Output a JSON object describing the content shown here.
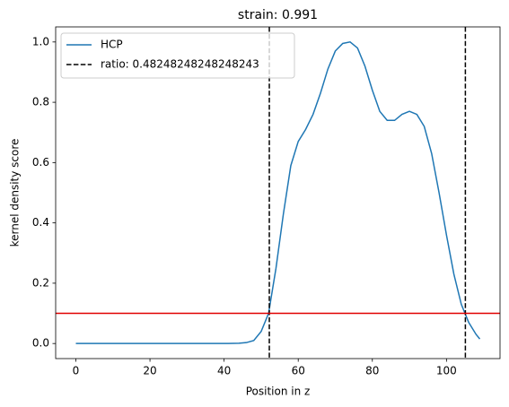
{
  "chart_data": {
    "type": "line",
    "title": "strain: 0.991",
    "x_label": "Position in z",
    "y_label": "kernel density score",
    "x": [
      0,
      10,
      20,
      30,
      40,
      44,
      46,
      48,
      50,
      52,
      54,
      56,
      58,
      60,
      62,
      64,
      66,
      68,
      70,
      72,
      74,
      76,
      78,
      80,
      82,
      84,
      86,
      88,
      90,
      92,
      94,
      96,
      98,
      100,
      102,
      104,
      106,
      108,
      109
    ],
    "series": [
      {
        "name": "HCP",
        "color": "#1f77b4",
        "values": [
          0,
          0,
          0,
          0,
          0,
          0.001,
          0.003,
          0.01,
          0.04,
          0.1,
          0.25,
          0.43,
          0.59,
          0.67,
          0.71,
          0.76,
          0.83,
          0.91,
          0.97,
          0.995,
          1.0,
          0.98,
          0.92,
          0.84,
          0.77,
          0.74,
          0.74,
          0.76,
          0.77,
          0.76,
          0.72,
          0.63,
          0.5,
          0.36,
          0.23,
          0.13,
          0.07,
          0.03,
          0.015
        ]
      }
    ],
    "vlines": {
      "name": "ratio: 0.48248248248248243",
      "color": "#000000",
      "dashed": true,
      "x": [
        52.2,
        105.1
      ]
    },
    "hline": {
      "value": 0.1,
      "color": "#e00000"
    },
    "xlim": [
      -5.45,
      114.45
    ],
    "ylim": [
      -0.05,
      1.05
    ],
    "xticks": [
      0,
      20,
      40,
      60,
      80,
      100
    ],
    "yticks": [
      {
        "value": 0,
        "label": "0.0"
      },
      0.2,
      0.4,
      0.6,
      0.8,
      {
        "value": 1,
        "label": "1.0"
      }
    ],
    "grid": false,
    "legend": "upper left"
  }
}
